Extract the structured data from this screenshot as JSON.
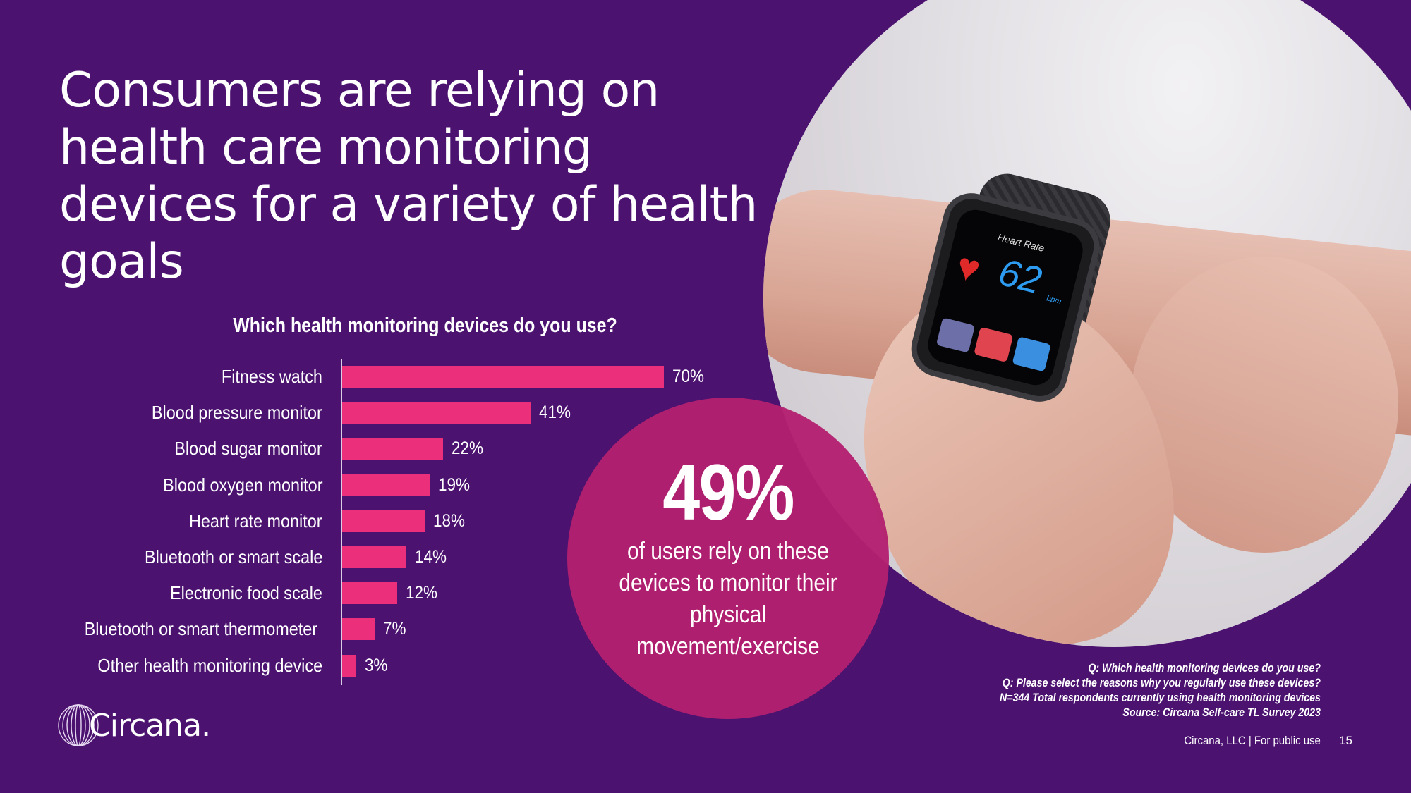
{
  "slide": {
    "title": "Consumers are relying on health care monitoring devices for a variety of health goals",
    "colors": {
      "background": "#4b1270",
      "bar": "#ec2f7b",
      "callout": "#b3206f"
    }
  },
  "photo": {
    "watch_screen": {
      "label": "Heart Rate",
      "value": "62",
      "unit": "bpm"
    }
  },
  "callout": {
    "value": "49%",
    "text": "of users rely on these devices to monitor their physical movement/exercise"
  },
  "chart_data": {
    "type": "bar",
    "orientation": "horizontal",
    "title": "Which health monitoring devices do you use?",
    "categories": [
      "Fitness watch",
      "Blood pressure monitor",
      "Blood sugar monitor",
      "Blood oxygen monitor",
      "Heart rate monitor",
      "Bluetooth or smart scale",
      "Electronic food scale",
      "Bluetooth or smart thermometer",
      "Other health monitoring device"
    ],
    "values": [
      70,
      41,
      22,
      19,
      18,
      14,
      12,
      7,
      3
    ],
    "value_labels": [
      "70%",
      "41%",
      "22%",
      "19%",
      "18%",
      "14%",
      "12%",
      "7%",
      "3%"
    ],
    "unit": "%",
    "xlim": [
      0,
      100
    ],
    "grid": false
  },
  "notes": {
    "lines": [
      "Q: Which health monitoring devices do you use?",
      "Q: Please select the reasons why you regularly use these devices?",
      "N=344 Total respondents currently using health monitoring devices",
      "Source:  Circana Self-care TL Survey 2023"
    ]
  },
  "footer": {
    "text": "Circana, LLC |  For public use",
    "page": "15"
  },
  "logo": {
    "text": "Circana."
  }
}
